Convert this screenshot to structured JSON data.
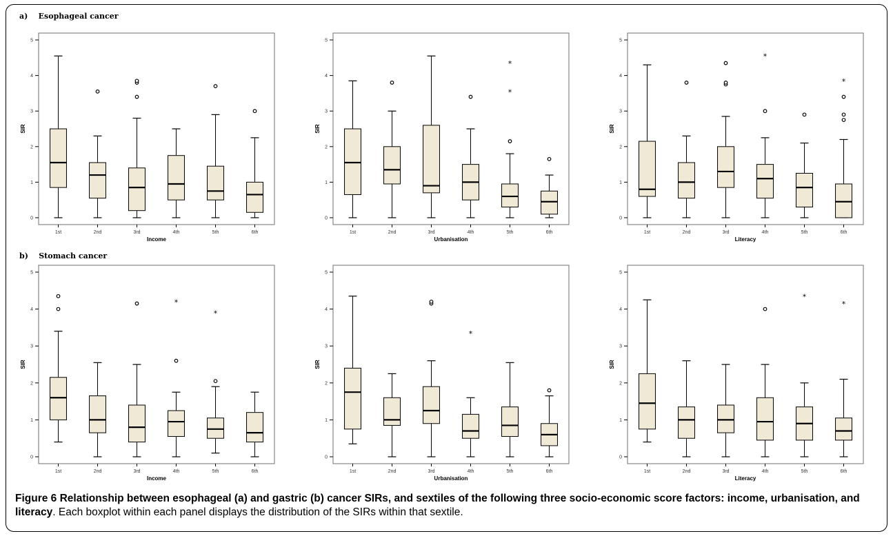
{
  "section_labels": {
    "a": "a)",
    "a_title": "Esophageal cancer",
    "b": "b)",
    "b_title": "Stomach cancer"
  },
  "caption": {
    "title": "Figure 6 Relationship between esophageal (a) and gastric (b) cancer SIRs, and sextiles of the following three socio-economic score factors: income, urbanisation, and literacy",
    "body": ". Each boxplot within each panel displays the distribution of the SIRs within that sextile."
  },
  "colors": {
    "box_fill": "#efe9d6",
    "stroke": "#000000",
    "plot_border": "#6f6f6f"
  },
  "chart_data": [
    {
      "type": "boxplot",
      "id": "a-income",
      "xlabel": "Income",
      "ylabel": "SIR",
      "ylim": [
        0,
        5
      ],
      "yticks": [
        "0",
        "1",
        "2",
        "3",
        "4",
        "5"
      ],
      "categories": [
        "1st",
        "2nd",
        "3rd",
        "4th",
        "5th",
        "6th"
      ],
      "boxes": [
        {
          "min": 0,
          "q1": 0.85,
          "median": 1.55,
          "q3": 2.5,
          "max": 4.55,
          "outliers": [],
          "extremes": []
        },
        {
          "min": 0,
          "q1": 0.55,
          "median": 1.2,
          "q3": 1.55,
          "max": 2.3,
          "outliers": [
            3.55
          ],
          "extremes": []
        },
        {
          "min": 0,
          "q1": 0.2,
          "median": 0.85,
          "q3": 1.4,
          "max": 2.8,
          "outliers": [
            3.4,
            3.8,
            3.85
          ],
          "extremes": []
        },
        {
          "min": 0,
          "q1": 0.5,
          "median": 0.95,
          "q3": 1.75,
          "max": 2.5,
          "outliers": [],
          "extremes": []
        },
        {
          "min": 0,
          "q1": 0.5,
          "median": 0.75,
          "q3": 1.45,
          "max": 2.9,
          "outliers": [
            3.7
          ],
          "extremes": []
        },
        {
          "min": 0,
          "q1": 0.15,
          "median": 0.65,
          "q3": 1.0,
          "max": 2.25,
          "outliers": [
            3.0
          ],
          "extremes": []
        }
      ]
    },
    {
      "type": "boxplot",
      "id": "a-urbanisation",
      "xlabel": "Urbanisation",
      "ylabel": "SIR",
      "ylim": [
        0,
        5
      ],
      "yticks": [
        "0",
        "1",
        "2",
        "3",
        "4",
        "5"
      ],
      "categories": [
        "1st",
        "2nd",
        "3rd",
        "4th",
        "5th",
        "6th"
      ],
      "boxes": [
        {
          "min": 0,
          "q1": 0.65,
          "median": 1.55,
          "q3": 2.5,
          "max": 3.85,
          "outliers": [],
          "extremes": []
        },
        {
          "min": 0,
          "q1": 0.95,
          "median": 1.35,
          "q3": 2.0,
          "max": 3.0,
          "outliers": [
            3.8
          ],
          "extremes": []
        },
        {
          "min": 0,
          "q1": 0.7,
          "median": 0.9,
          "q3": 2.6,
          "max": 4.55,
          "outliers": [],
          "extremes": []
        },
        {
          "min": 0,
          "q1": 0.5,
          "median": 1.0,
          "q3": 1.5,
          "max": 2.5,
          "outliers": [
            3.4
          ],
          "extremes": []
        },
        {
          "min": 0,
          "q1": 0.3,
          "median": 0.6,
          "q3": 0.95,
          "max": 1.8,
          "outliers": [
            2.15
          ],
          "extremes": [
            3.55,
            4.35
          ]
        },
        {
          "min": 0,
          "q1": 0.1,
          "median": 0.45,
          "q3": 0.75,
          "max": 1.2,
          "outliers": [
            1.65
          ],
          "extremes": []
        }
      ]
    },
    {
      "type": "boxplot",
      "id": "a-literacy",
      "xlabel": "Literacy",
      "ylabel": "SIR",
      "ylim": [
        0,
        5
      ],
      "yticks": [
        "0",
        "1",
        "2",
        "3",
        "4",
        "5"
      ],
      "categories": [
        "1st",
        "2nd",
        "3rd",
        "4th",
        "5th",
        "6th"
      ],
      "boxes": [
        {
          "min": 0,
          "q1": 0.6,
          "median": 0.8,
          "q3": 2.15,
          "max": 4.3,
          "outliers": [],
          "extremes": []
        },
        {
          "min": 0,
          "q1": 0.55,
          "median": 1.0,
          "q3": 1.55,
          "max": 2.3,
          "outliers": [
            3.8
          ],
          "extremes": []
        },
        {
          "min": 0,
          "q1": 0.85,
          "median": 1.3,
          "q3": 2.0,
          "max": 2.85,
          "outliers": [
            3.75,
            3.8,
            4.35
          ],
          "extremes": []
        },
        {
          "min": 0,
          "q1": 0.55,
          "median": 1.1,
          "q3": 1.5,
          "max": 2.25,
          "outliers": [
            3.0
          ],
          "extremes": [
            4.55
          ]
        },
        {
          "min": 0,
          "q1": 0.3,
          "median": 0.85,
          "q3": 1.25,
          "max": 2.1,
          "outliers": [
            2.9
          ],
          "extremes": []
        },
        {
          "min": 0,
          "q1": 0,
          "median": 0.45,
          "q3": 0.95,
          "max": 2.2,
          "outliers": [
            2.75,
            2.9,
            3.4
          ],
          "extremes": [
            3.85
          ]
        }
      ]
    },
    {
      "type": "boxplot",
      "id": "b-income",
      "xlabel": "Income",
      "ylabel": "SIR",
      "ylim": [
        0,
        5
      ],
      "yticks": [
        "0",
        "1",
        "2",
        "3",
        "4",
        "5"
      ],
      "categories": [
        "1st",
        "2nd",
        "3rd",
        "4th",
        "5th",
        "6th"
      ],
      "boxes": [
        {
          "min": 0.4,
          "q1": 1.0,
          "median": 1.6,
          "q3": 2.15,
          "max": 3.4,
          "outliers": [
            4.0,
            4.35
          ],
          "extremes": []
        },
        {
          "min": 0,
          "q1": 0.65,
          "median": 1.0,
          "q3": 1.65,
          "max": 2.55,
          "outliers": [],
          "extremes": []
        },
        {
          "min": 0,
          "q1": 0.4,
          "median": 0.8,
          "q3": 1.4,
          "max": 2.5,
          "outliers": [
            4.15
          ],
          "extremes": []
        },
        {
          "min": 0,
          "q1": 0.55,
          "median": 0.95,
          "q3": 1.25,
          "max": 1.75,
          "outliers": [
            2.6
          ],
          "extremes": [
            4.2
          ]
        },
        {
          "min": 0.1,
          "q1": 0.5,
          "median": 0.75,
          "q3": 1.05,
          "max": 1.9,
          "outliers": [
            2.05
          ],
          "extremes": [
            3.9
          ]
        },
        {
          "min": 0,
          "q1": 0.4,
          "median": 0.65,
          "q3": 1.2,
          "max": 1.75,
          "outliers": [],
          "extremes": []
        }
      ]
    },
    {
      "type": "boxplot",
      "id": "b-urbanisation",
      "xlabel": "Urbanisation",
      "ylabel": "SIR",
      "ylim": [
        0,
        5
      ],
      "yticks": [
        "0",
        "1",
        "2",
        "3",
        "4",
        "5"
      ],
      "categories": [
        "1st",
        "2nd",
        "3rd",
        "4th",
        "5th",
        "6th"
      ],
      "boxes": [
        {
          "min": 0.35,
          "q1": 0.75,
          "median": 1.75,
          "q3": 2.4,
          "max": 4.35,
          "outliers": [],
          "extremes": []
        },
        {
          "min": 0,
          "q1": 0.85,
          "median": 1.0,
          "q3": 1.6,
          "max": 2.25,
          "outliers": [],
          "extremes": []
        },
        {
          "min": 0,
          "q1": 0.9,
          "median": 1.25,
          "q3": 1.9,
          "max": 2.6,
          "outliers": [
            4.15,
            4.2
          ],
          "extremes": []
        },
        {
          "min": 0,
          "q1": 0.5,
          "median": 0.7,
          "q3": 1.15,
          "max": 1.6,
          "outliers": [],
          "extremes": [
            3.35
          ]
        },
        {
          "min": 0,
          "q1": 0.55,
          "median": 0.85,
          "q3": 1.35,
          "max": 2.55,
          "outliers": [],
          "extremes": []
        },
        {
          "min": 0,
          "q1": 0.3,
          "median": 0.6,
          "q3": 0.9,
          "max": 1.65,
          "outliers": [
            1.8
          ],
          "extremes": []
        }
      ]
    },
    {
      "type": "boxplot",
      "id": "b-literacy",
      "xlabel": "Literacy",
      "ylabel": "SIR",
      "ylim": [
        0,
        5
      ],
      "yticks": [
        "0",
        "1",
        "2",
        "3",
        "4",
        "5"
      ],
      "categories": [
        "1st",
        "2nd",
        "3rd",
        "4th",
        "5th",
        "6th"
      ],
      "boxes": [
        {
          "min": 0.4,
          "q1": 0.75,
          "median": 1.45,
          "q3": 2.25,
          "max": 4.25,
          "outliers": [],
          "extremes": []
        },
        {
          "min": 0,
          "q1": 0.5,
          "median": 1.0,
          "q3": 1.35,
          "max": 2.6,
          "outliers": [],
          "extremes": []
        },
        {
          "min": 0,
          "q1": 0.65,
          "median": 1.0,
          "q3": 1.4,
          "max": 2.5,
          "outliers": [],
          "extremes": []
        },
        {
          "min": 0,
          "q1": 0.45,
          "median": 0.95,
          "q3": 1.6,
          "max": 2.5,
          "outliers": [
            4.0
          ],
          "extremes": []
        },
        {
          "min": 0,
          "q1": 0.45,
          "median": 0.9,
          "q3": 1.35,
          "max": 2.0,
          "outliers": [],
          "extremes": [
            4.35
          ]
        },
        {
          "min": 0,
          "q1": 0.45,
          "median": 0.7,
          "q3": 1.05,
          "max": 2.1,
          "outliers": [],
          "extremes": [
            4.15
          ]
        }
      ]
    }
  ]
}
